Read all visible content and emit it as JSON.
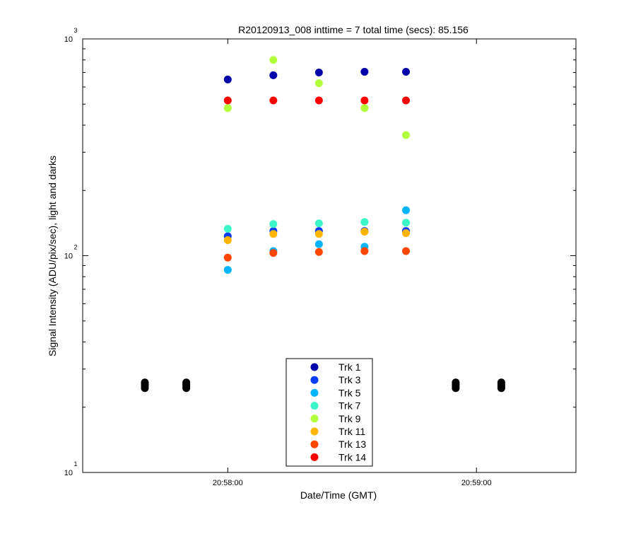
{
  "chart_data": {
    "type": "scatter",
    "title": "R20120913_008 inttime = 7 total time (secs): 85.156",
    "xlabel": "Date/Time (GMT)",
    "ylabel": "Signal Intensity (ADU/pix/sec), light and darks",
    "y_scale": "log",
    "ylim": [
      10,
      1000
    ],
    "xlim": [
      "20:57:25",
      "20:59:24"
    ],
    "x_ticks": [
      {
        "value": "20:58:00",
        "label": "20:58:00"
      },
      {
        "value": "20:59:00",
        "label": "20:59:00"
      }
    ],
    "y_ticks": [
      {
        "value": 10,
        "base": "10",
        "exp": "1"
      },
      {
        "value": 100,
        "base": "10",
        "exp": "2"
      },
      {
        "value": 1000,
        "base": "10",
        "exp": "3"
      }
    ],
    "legend_position": "bottom-center",
    "series": [
      {
        "name": "Trk 1",
        "color": "#0000aa",
        "x": [
          "20:58:00",
          "20:58:11",
          "20:58:22",
          "20:58:33",
          "20:58:43"
        ],
        "y": [
          650,
          680,
          700,
          705,
          705
        ]
      },
      {
        "name": "Trk 3",
        "color": "#0a3cff",
        "x": [
          "20:58:00",
          "20:58:11",
          "20:58:22",
          "20:58:33",
          "20:58:43"
        ],
        "y": [
          123,
          130,
          130,
          130,
          130
        ]
      },
      {
        "name": "Trk 5",
        "color": "#00b4ff",
        "x": [
          "20:58:00",
          "20:58:11",
          "20:58:22",
          "20:58:33",
          "20:58:43"
        ],
        "y": [
          86,
          105,
          113,
          110,
          162
        ]
      },
      {
        "name": "Trk 7",
        "color": "#3cf5c8",
        "x": [
          "20:58:00",
          "20:58:11",
          "20:58:22",
          "20:58:33",
          "20:58:43"
        ],
        "y": [
          133,
          140,
          141,
          143,
          142
        ]
      },
      {
        "name": "Trk 9",
        "color": "#b4ff3c",
        "x": [
          "20:58:00",
          "20:58:11",
          "20:58:22",
          "20:58:33",
          "20:58:43"
        ],
        "y": [
          480,
          800,
          625,
          480,
          360
        ]
      },
      {
        "name": "Trk 11",
        "color": "#ffb400",
        "x": [
          "20:58:00",
          "20:58:11",
          "20:58:22",
          "20:58:33",
          "20:58:43"
        ],
        "y": [
          118,
          126,
          126,
          129,
          127
        ]
      },
      {
        "name": "Trk 13",
        "color": "#ff4600",
        "x": [
          "20:58:00",
          "20:58:11",
          "20:58:22",
          "20:58:33",
          "20:58:43"
        ],
        "y": [
          98,
          103,
          104,
          105,
          105
        ]
      },
      {
        "name": "Trk 14",
        "color": "#ff0000",
        "x": [
          "20:58:00",
          "20:58:11",
          "20:58:22",
          "20:58:33",
          "20:58:43"
        ],
        "y": [
          520,
          520,
          520,
          520,
          520
        ]
      }
    ],
    "darks": {
      "color": "#000000",
      "x": [
        "20:57:40",
        "20:57:50",
        "20:58:55",
        "20:59:06"
      ],
      "y": [
        24.5,
        25,
        25.5,
        26
      ]
    }
  }
}
